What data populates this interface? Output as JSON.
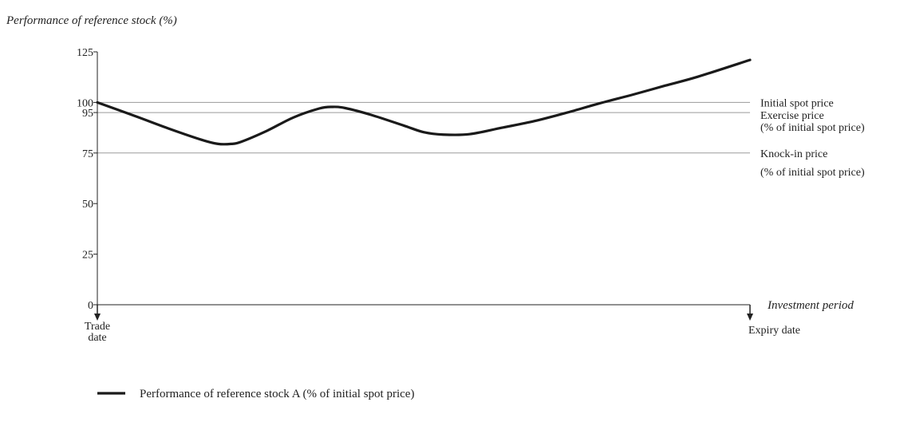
{
  "chart_data": {
    "type": "line",
    "title": "Performance of reference stock (%)",
    "xlabel": "Investment period",
    "ylabel": "",
    "ylim": [
      0,
      125
    ],
    "yticks": [
      0,
      25,
      50,
      75,
      95,
      100,
      125
    ],
    "x_start_label": [
      "Trade",
      "date"
    ],
    "x_end_label": "Expiry date",
    "reference_lines": [
      {
        "value": 100,
        "label": [
          "Initial spot price"
        ]
      },
      {
        "value": 95,
        "label": [
          "Exercise price",
          "(% of initial spot price)"
        ]
      },
      {
        "value": 75,
        "label": [
          "Knock-in price",
          "(% of initial spot price)"
        ]
      }
    ],
    "series": [
      {
        "name": "Performance of reference stock A (% of initial spot price)",
        "color": "#1a1a1a",
        "x": [
          0,
          0.06,
          0.11,
          0.16,
          0.185,
          0.205,
          0.22,
          0.26,
          0.3,
          0.34,
          0.36,
          0.38,
          0.42,
          0.47,
          0.5,
          0.53,
          0.57,
          0.62,
          0.67,
          0.72,
          0.77,
          0.82,
          0.87,
          0.92,
          1.0
        ],
        "values": [
          100,
          93,
          87,
          81.5,
          79.5,
          79.5,
          80.5,
          86,
          92.5,
          97,
          97.8,
          97.2,
          93.8,
          88.5,
          85.3,
          84.1,
          84.3,
          87.5,
          90.8,
          95,
          99.6,
          103.8,
          108.3,
          112.7,
          121
        ]
      }
    ],
    "grid": false,
    "legend": "bottom-left"
  }
}
